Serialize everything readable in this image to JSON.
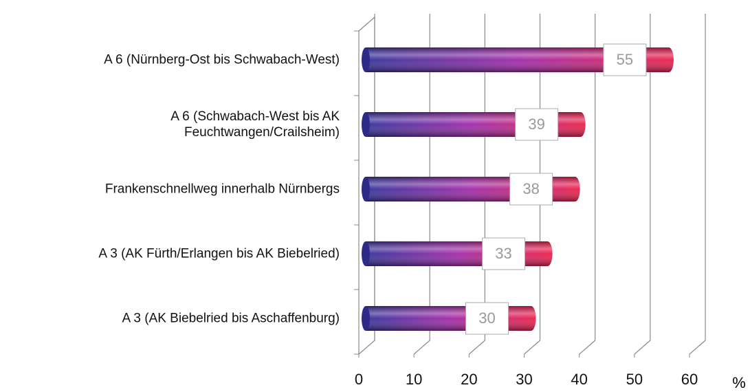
{
  "chart_data": {
    "type": "bar",
    "orientation": "horizontal",
    "categories": [
      "A 6 (Nürnberg-Ost bis Schwabach-West)",
      "A 6 (Schwabach-West bis AK\nFeuchtwangen/Crailsheim)",
      "Frankenschnellweg innerhalb Nürnbergs",
      "A 3 (AK Fürth/Erlangen bis AK Biebelried)",
      "A 3 (AK Biebelried bis Aschaffenburg)"
    ],
    "values": [
      55,
      39,
      38,
      33,
      30
    ],
    "colors": [
      "#35309a",
      "#a02aa8",
      "#e8204e"
    ],
    "xlim": [
      0,
      60
    ],
    "xticks": [
      0,
      10,
      20,
      30,
      40,
      50,
      60
    ],
    "xlabel": "%",
    "grid": true
  }
}
